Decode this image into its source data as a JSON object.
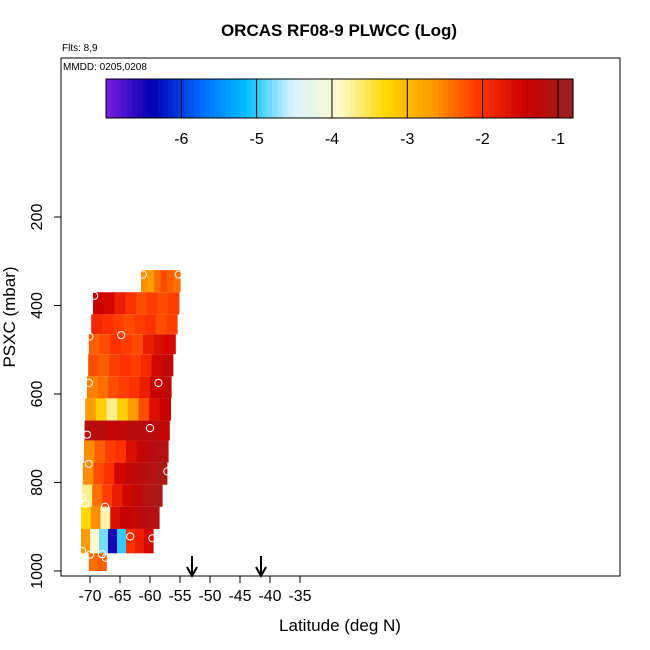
{
  "chart_data": {
    "type": "heatmap",
    "title": "ORCAS RF08-9 PLWCC (Log)",
    "flights_label": "Flts: 8,9",
    "date_label": "MMDD: 0205,0208",
    "xlabel": "Latitude (deg N)",
    "ylabel": "PSXC (mbar)",
    "xlim": [
      -72,
      -35
    ],
    "ylim": [
      1000,
      0
    ],
    "x_ticks": [
      "-70",
      "-65",
      "-60",
      "-55",
      "-50",
      "-45",
      "-40",
      "-35"
    ],
    "y_ticks": [
      "200",
      "400",
      "600",
      "800",
      "1000"
    ],
    "colorbar": {
      "range": [
        -7,
        -0.8
      ],
      "ticks": [
        "-6",
        "-5",
        "-4",
        "-3",
        "-2",
        "-1"
      ],
      "colors": [
        "#7a1fe0",
        "#0000b0",
        "#0066ff",
        "#00bfff",
        "#d8f4ff",
        "#fffacd",
        "#ffd700",
        "#ff9900",
        "#ff3300",
        "#cc0000",
        "#992222"
      ]
    },
    "layers": [
      {
        "p_bottom": 370,
        "p_top": 320,
        "lat_start": -61.5,
        "lat_end": -55,
        "values": [
          -2.6,
          -2.7,
          -2.4,
          -2.2,
          -2.3,
          -2.4
        ]
      },
      {
        "p_bottom": 420,
        "p_top": 370,
        "lat_start": -69.5,
        "lat_end": -55.2,
        "values": [
          -1.4,
          -1.5,
          -1.8,
          -2.0,
          -2.2,
          -2.1,
          -2.2,
          -2.1
        ]
      },
      {
        "p_bottom": 465,
        "p_top": 420,
        "lat_start": -69.8,
        "lat_end": -55.5,
        "values": [
          -1.9,
          -2.0,
          -2.1,
          -2.2,
          -2.1,
          -2.0,
          -2.2,
          -2.1
        ]
      },
      {
        "p_bottom": 510,
        "p_top": 465,
        "lat_start": -70.2,
        "lat_end": -55.8,
        "values": [
          -2.3,
          -2.2,
          -2.0,
          -2.1,
          -2.2,
          -1.8,
          -1.6,
          -1.5
        ]
      },
      {
        "p_bottom": 560,
        "p_top": 510,
        "lat_start": -70.3,
        "lat_end": -56.2,
        "values": [
          -2.2,
          -2.3,
          -2.1,
          -2.0,
          -2.1,
          -1.9,
          -1.5,
          -1.3
        ]
      },
      {
        "p_bottom": 610,
        "p_top": 560,
        "lat_start": -70.5,
        "lat_end": -56.5,
        "values": [
          -2.5,
          -2.4,
          -2.2,
          -2.1,
          -2.0,
          -1.8,
          -1.4,
          -1.3
        ]
      },
      {
        "p_bottom": 660,
        "p_top": 610,
        "lat_start": -70.8,
        "lat_end": -56.6,
        "values": [
          -2.7,
          -3.2,
          -3.7,
          -3.2,
          -2.7,
          -2.2,
          -1.6,
          -1.4
        ]
      },
      {
        "p_bottom": 705,
        "p_top": 660,
        "lat_start": -70.9,
        "lat_end": -56.8,
        "values": [
          -1.2,
          -1.2,
          -1.3,
          -1.3,
          -1.2,
          -1.2,
          -1.2,
          -1.3
        ]
      },
      {
        "p_bottom": 755,
        "p_top": 705,
        "lat_start": -71.0,
        "lat_end": -57.0,
        "values": [
          -2.6,
          -2.3,
          -2.1,
          -2.0,
          -1.6,
          -1.3,
          -1.2,
          -1.1
        ]
      },
      {
        "p_bottom": 805,
        "p_top": 755,
        "lat_start": -71.2,
        "lat_end": -57.2,
        "values": [
          -2.6,
          -2.2,
          -2.0,
          -1.5,
          -1.3,
          -1.2,
          -1.1,
          -1.0
        ]
      },
      {
        "p_bottom": 855,
        "p_top": 805,
        "lat_start": -71.3,
        "lat_end": -58.0,
        "values": [
          -3.7,
          -2.4,
          -2.1,
          -1.8,
          -1.5,
          -1.3,
          -1.1,
          -1.0
        ]
      },
      {
        "p_bottom": 905,
        "p_top": 855,
        "lat_start": -71.5,
        "lat_end": -58.5,
        "values": [
          -3.3,
          -2.6,
          -3.8,
          -1.6,
          -1.4,
          -1.3,
          -1.2,
          -1.1
        ]
      },
      {
        "p_bottom": 960,
        "p_top": 905,
        "lat_start": -71.5,
        "lat_end": -59.5,
        "values": [
          -2.7,
          -3.9,
          -4.8,
          -6.5,
          -5.0,
          -2.0,
          -1.8,
          -1.5
        ]
      },
      {
        "p_bottom": 1000,
        "p_top": 960,
        "lat_start": -70.2,
        "lat_end": -67.3,
        "values": [
          -2.4,
          -2.3
        ]
      }
    ],
    "points": [
      {
        "lat": -61.2,
        "p": 330
      },
      {
        "lat": -55.2,
        "p": 330
      },
      {
        "lat": -69.3,
        "p": 378
      },
      {
        "lat": -64.8,
        "p": 467
      },
      {
        "lat": -70.1,
        "p": 470
      },
      {
        "lat": -70.2,
        "p": 575
      },
      {
        "lat": -58.6,
        "p": 575
      },
      {
        "lat": -60.0,
        "p": 677
      },
      {
        "lat": -70.5,
        "p": 692
      },
      {
        "lat": -70.2,
        "p": 758
      },
      {
        "lat": -57.1,
        "p": 775
      },
      {
        "lat": -71.3,
        "p": 835
      },
      {
        "lat": -67.5,
        "p": 855
      },
      {
        "lat": -70.8,
        "p": 848
      },
      {
        "lat": -63.3,
        "p": 922
      },
      {
        "lat": -59.6,
        "p": 926
      },
      {
        "lat": -71.3,
        "p": 955
      },
      {
        "lat": -70.0,
        "p": 963
      },
      {
        "lat": -68.0,
        "p": 962
      },
      {
        "lat": -67.4,
        "p": 970
      }
    ],
    "arrows": [
      {
        "lat": -53.0
      },
      {
        "lat": -41.5
      }
    ],
    "grid": false
  }
}
